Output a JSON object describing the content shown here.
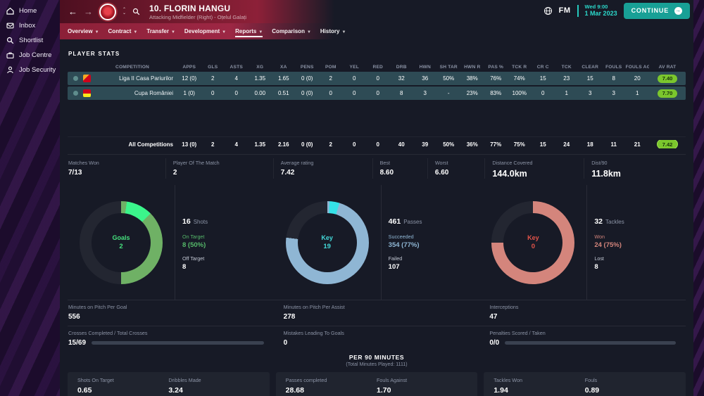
{
  "colors": {
    "accent_teal": "#25cabe",
    "rating_green": "#7bc62d",
    "header_red": "#9d2744",
    "sidebar_purple": "#241038",
    "row_teal": "#2e4b55"
  },
  "topbar": {
    "fm_label": "FM",
    "datetime_line1": "Wed 9:00",
    "datetime_line2": "1 Mar 2023",
    "continue_label": "CONTINUE"
  },
  "sidebar": {
    "items": [
      {
        "label": "Home"
      },
      {
        "label": "Inbox"
      },
      {
        "label": "Shortlist"
      },
      {
        "label": "Job Centre"
      },
      {
        "label": "Job Security"
      }
    ]
  },
  "header": {
    "player_name": "10. FLORIN HANGU",
    "player_subtitle": "Attacking Midfielder (Right) - Oțelul Galați",
    "tabs": [
      {
        "label": "Overview"
      },
      {
        "label": "Contract"
      },
      {
        "label": "Transfer"
      },
      {
        "label": "Development"
      },
      {
        "label": "Reports"
      },
      {
        "label": "Comparison"
      },
      {
        "label": "History"
      }
    ],
    "active_tab": "Reports"
  },
  "player_stats": {
    "section_title": "PLAYER STATS",
    "columns": [
      "COMPETITION",
      "APPS",
      "GLS",
      "ASTS",
      "XG",
      "XA",
      "PENS",
      "POM",
      "YEL",
      "RED",
      "DRB",
      "HWN",
      "SH TAR",
      "HWN R",
      "PAS %",
      "TCK R",
      "CR C",
      "TCK",
      "CLEAR",
      "FOULS",
      "FOULS AG",
      "AV RAT"
    ],
    "rows": [
      {
        "competition": "Liga II Casa Pariurilor",
        "values": [
          "12 (0)",
          "2",
          "4",
          "1.35",
          "1.65",
          "0 (0)",
          "2",
          "0",
          "0",
          "32",
          "36",
          "50%",
          "38%",
          "76%",
          "74%",
          "15",
          "23",
          "15",
          "8",
          "20"
        ],
        "rating": "7.40"
      },
      {
        "competition": "Cupa României",
        "values": [
          "1 (0)",
          "0",
          "0",
          "0.00",
          "0.51",
          "0 (0)",
          "0",
          "0",
          "0",
          "8",
          "3",
          "-",
          "23%",
          "83%",
          "100%",
          "0",
          "1",
          "3",
          "3",
          "1"
        ],
        "rating": "7.70"
      }
    ],
    "totals": {
      "competition": "All Competitions",
      "values": [
        "13 (0)",
        "2",
        "4",
        "1.35",
        "2.16",
        "0 (0)",
        "2",
        "0",
        "0",
        "40",
        "39",
        "50%",
        "36%",
        "77%",
        "75%",
        "15",
        "24",
        "18",
        "11",
        "21"
      ],
      "rating": "7.42"
    }
  },
  "summary": [
    {
      "label": "Matches Won",
      "value": "7/13"
    },
    {
      "label": "Player Of The Match",
      "value": "2"
    },
    {
      "label": "Average rating",
      "value": "7.42"
    },
    {
      "label": "Best",
      "value": "8.60"
    },
    {
      "label": "Worst",
      "value": "6.60"
    },
    {
      "label": "Distance Covered",
      "value": "144.0km"
    },
    {
      "label": "Dist/90",
      "value": "11.8km"
    }
  ],
  "donuts": [
    {
      "center_label": "Goals",
      "center_value": "2",
      "center_color": "#45e07d",
      "total": "16",
      "total_label": "Shots",
      "stat1_label": "On Target",
      "stat1_value": "8 (50%)",
      "stat1_color": "#55b869",
      "stat2_label": "Off Target",
      "stat2_value": "8",
      "segments": [
        {
          "color": "#6fb165",
          "from": 0,
          "to": 8
        },
        {
          "color": "#3bf58b",
          "from": 8,
          "to": 45
        },
        {
          "color": "#6fb165",
          "from": 45,
          "to": 180
        },
        {
          "color": "rgba(255,255,255,0.05)",
          "from": 180,
          "to": 360
        }
      ]
    },
    {
      "center_label": "Key",
      "center_value": "19",
      "center_color": "#43d9d9",
      "total": "461",
      "total_label": "Passes",
      "stat1_label": "Succeeded",
      "stat1_value": "354 (77%)",
      "stat1_color": "#8fb6d4",
      "stat2_label": "Failed",
      "stat2_value": "107",
      "segments": [
        {
          "color": "#8fb6d4",
          "from": 0,
          "to": 3
        },
        {
          "color": "#35e2e8",
          "from": 3,
          "to": 17
        },
        {
          "color": "#8fb6d4",
          "from": 17,
          "to": 277
        },
        {
          "color": "rgba(255,255,255,0.05)",
          "from": 277,
          "to": 360
        }
      ]
    },
    {
      "center_label": "Key",
      "center_value": "0",
      "center_color": "#e2544a",
      "total": "32",
      "total_label": "Tackles",
      "stat1_label": "Won",
      "stat1_value": "24 (75%)",
      "stat1_color": "#d4857c",
      "stat2_label": "Lost",
      "stat2_value": "8",
      "segments": [
        {
          "color": "#d4857c",
          "from": 0,
          "to": 270
        },
        {
          "color": "rgba(255,255,255,0.05)",
          "from": 270,
          "to": 360
        }
      ]
    }
  ],
  "detail": {
    "r1c1": {
      "label": "Minutes on Pitch Per Goal",
      "value": "556"
    },
    "r1c2": {
      "label": "Minutes on Pitch Per Assist",
      "value": "278"
    },
    "r1c3": {
      "label": "Interceptions",
      "value": "47"
    },
    "r2c1": {
      "label": "Crosses Completed / Total Crosses",
      "value": "15/69",
      "bar_pct": 22
    },
    "r2c2": {
      "label": "Mistakes Leading To Goals",
      "value": "0"
    },
    "r2c3": {
      "label": "Penalties Scored / Taken",
      "value": "0/0",
      "bar_pct": 100
    }
  },
  "per90": {
    "title": "PER 90 MINUTES",
    "subtitle": "(Total Minutes Played: 1111)",
    "panels": [
      [
        {
          "label": "Shots On Target",
          "value": "0.65"
        },
        {
          "label": "Dribbles Made",
          "value": "3.24"
        }
      ],
      [
        {
          "label": "Passes completed",
          "value": "28.68"
        },
        {
          "label": "Fouls Against",
          "value": "1.70"
        }
      ],
      [
        {
          "label": "Tackles Won",
          "value": "1.94"
        },
        {
          "label": "Fouls",
          "value": "0.89"
        }
      ]
    ]
  }
}
